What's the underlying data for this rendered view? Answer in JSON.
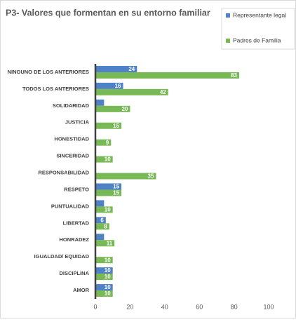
{
  "chart_data": {
    "type": "bar",
    "orientation": "horizontal",
    "title": "P3- Valores que formentan en su entorno familiar",
    "categories": [
      "NINGUNO DE LOS ANTERIORES",
      "TODOS LOS ANTERIORES",
      "SOLIDARIDAD",
      "JUSTICIA",
      "HONESTIDAD",
      "SINCERIDAD",
      "RESPONSABILIDAD",
      "RESPETO",
      "PUNTUALIDAD",
      "LIBERTAD",
      "HONRADEZ",
      "IGUALDAD/ EQUIDAD",
      "DISCIPLINA",
      "AMOR"
    ],
    "series": [
      {
        "name": "Representante legal",
        "color": "#4f81c7",
        "values": [
          24,
          16,
          5,
          null,
          null,
          null,
          null,
          15,
          5,
          6,
          5,
          null,
          10,
          10
        ],
        "value_labels": [
          "24",
          "16",
          null,
          null,
          null,
          null,
          null,
          "15",
          null,
          "6",
          null,
          null,
          "10",
          "10"
        ]
      },
      {
        "name": "Padres de Familia",
        "color": "#78b956",
        "values": [
          83,
          42,
          20,
          15,
          9,
          10,
          35,
          15,
          10,
          8,
          11,
          10,
          10,
          10
        ],
        "value_labels": [
          "83",
          "42",
          "20",
          "15",
          "9",
          "10",
          "35",
          "15",
          "10",
          "8",
          "11",
          "10",
          "10",
          "10"
        ]
      }
    ],
    "xlim": [
      0,
      100
    ],
    "xticks": [
      0,
      20,
      40,
      60,
      80,
      100
    ],
    "grid": false,
    "legend": "top-right"
  }
}
